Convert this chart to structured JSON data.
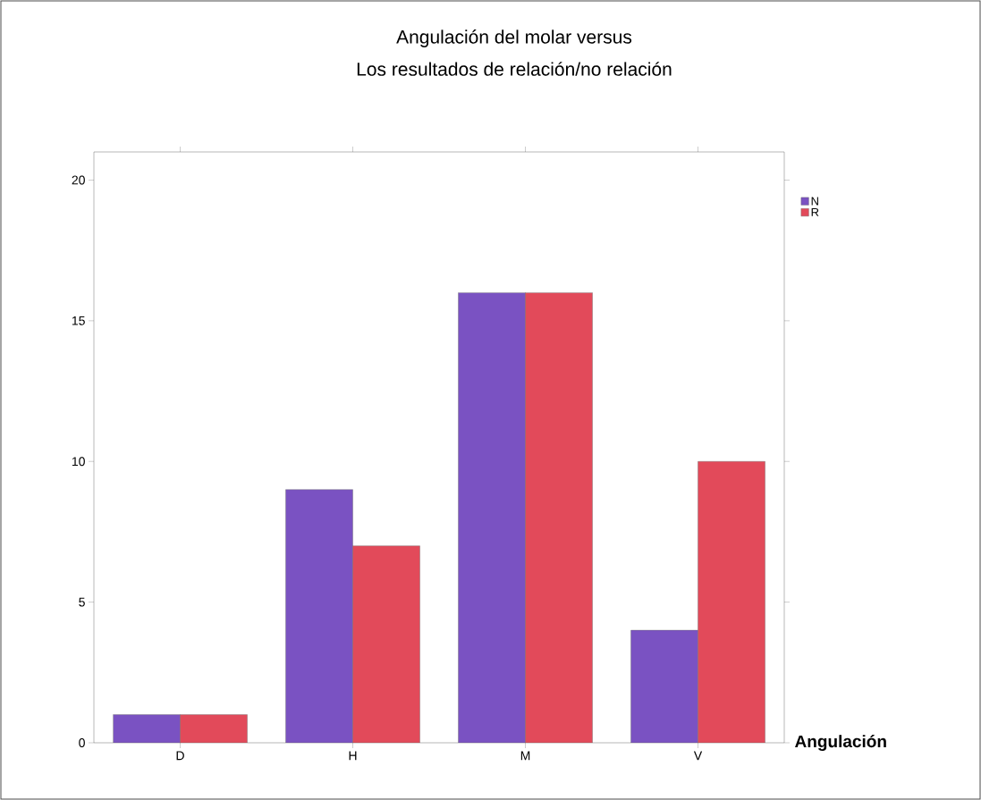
{
  "chart_data": {
    "type": "bar",
    "title": "Angulación del molar versus",
    "subtitle": "Los resultados de relación/no relación",
    "categories": [
      "D",
      "H",
      "M",
      "V"
    ],
    "series": [
      {
        "name": "N",
        "color": "#7a52c2",
        "values": [
          1,
          9,
          16,
          4
        ]
      },
      {
        "name": "R",
        "color": "#e24a5a",
        "values": [
          1,
          7,
          16,
          10
        ]
      }
    ],
    "xlabel": "Angulación",
    "ylim": [
      0,
      21
    ],
    "yticks": [
      0,
      5,
      10,
      15,
      20
    ],
    "legend": "top right",
    "grid": false
  }
}
